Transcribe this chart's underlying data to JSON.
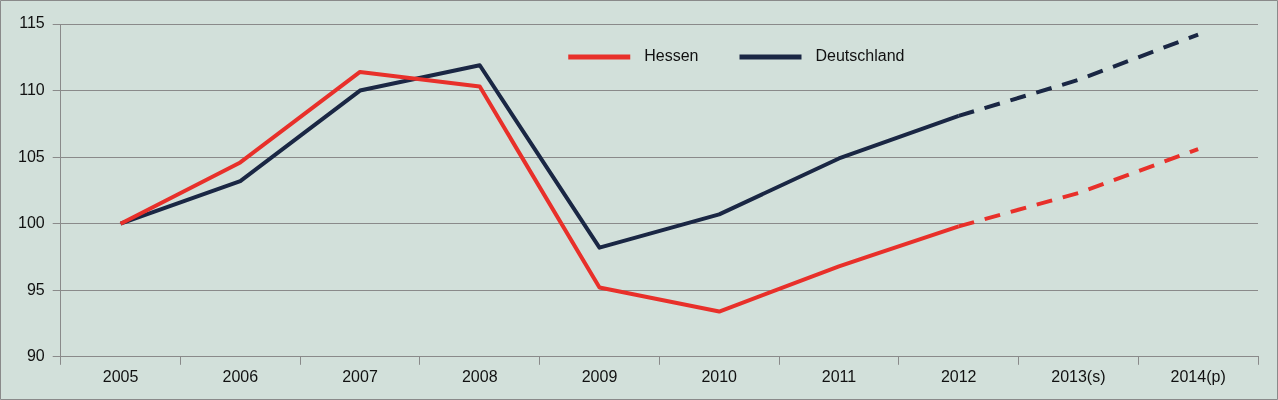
{
  "chart_data": {
    "type": "line",
    "categories": [
      "2005",
      "2006",
      "2007",
      "2008",
      "2009",
      "2010",
      "2011",
      "2012",
      "2013(s)",
      "2014(p)"
    ],
    "series": [
      {
        "name": "Hessen",
        "color": "#e8302a",
        "values": [
          100,
          104.6,
          111.4,
          110.3,
          95.2,
          93.4,
          96.8,
          99.8,
          null,
          null
        ]
      },
      {
        "name": "Deutschland",
        "color": "#1a2744",
        "values": [
          100,
          103.2,
          110.0,
          111.9,
          98.2,
          100.7,
          104.9,
          108.1,
          null,
          null
        ]
      },
      {
        "color": "#e8302a",
        "line_style": "dashed",
        "values": [
          null,
          null,
          null,
          null,
          null,
          null,
          null,
          99.8,
          102.3,
          105.6
        ]
      },
      {
        "color": "#1a2744",
        "line_style": "dashed",
        "values": [
          null,
          null,
          null,
          null,
          null,
          null,
          null,
          108.1,
          110.8,
          114.2
        ]
      }
    ],
    "ylim": [
      90,
      115
    ],
    "yticks": [
      90,
      95,
      100,
      105,
      110,
      115
    ],
    "grid": "y",
    "legend": "top",
    "line_style": "solid"
  }
}
